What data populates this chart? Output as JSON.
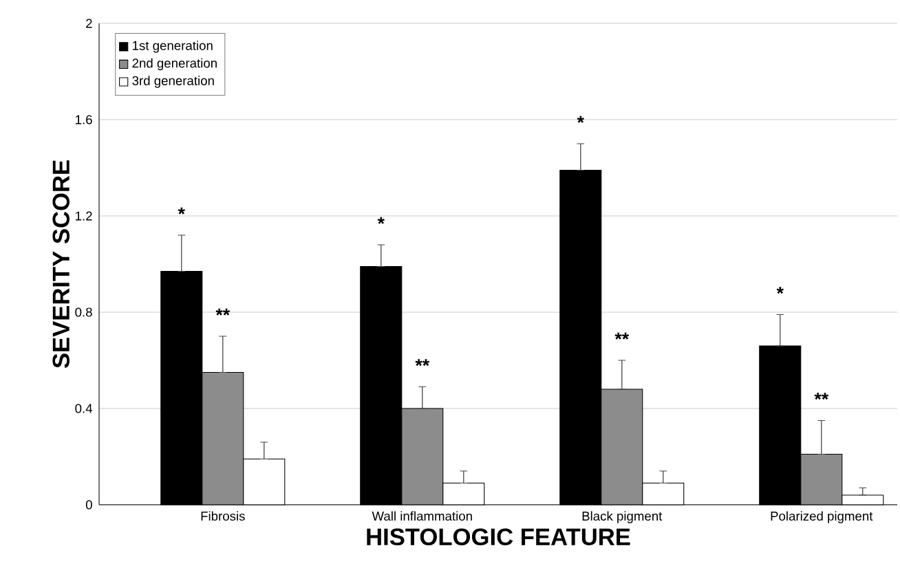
{
  "chart_data": {
    "type": "bar",
    "xlabel": "HISTOLOGIC FEATURE",
    "ylabel": "SEVERITY SCORE",
    "categories": [
      "Fibrosis",
      "Wall inflammation",
      "Black pigment",
      "Polarized pigment"
    ],
    "series": [
      {
        "name": "1st generation",
        "color": "#000000",
        "values": [
          0.97,
          0.99,
          1.39,
          0.66
        ],
        "value_labels": [
          "*",
          "*",
          "*",
          "*"
        ],
        "errors": [
          [
            0.97,
            1.12
          ],
          [
            0.99,
            1.08
          ],
          [
            1.39,
            1.5
          ],
          [
            0.66,
            0.79
          ]
        ]
      },
      {
        "name": "2nd generation",
        "color": "#8c8c8c",
        "values": [
          0.55,
          0.4,
          0.48,
          0.21
        ],
        "value_labels": [
          "**",
          "**",
          "**",
          "**"
        ],
        "errors": [
          [
            0.55,
            0.7
          ],
          [
            0.4,
            0.49
          ],
          [
            0.48,
            0.6
          ],
          [
            0.21,
            0.35
          ]
        ]
      },
      {
        "name": "3rd generation",
        "color": "#ffffff",
        "values": [
          0.19,
          0.09,
          0.09,
          0.04
        ],
        "errors": [
          [
            0.19,
            0.26
          ],
          [
            0.09,
            0.14
          ],
          [
            0.09,
            0.14
          ],
          [
            0.04,
            0.07
          ]
        ]
      }
    ],
    "ylim": [
      0,
      2
    ],
    "yticks": [
      0,
      0.4,
      0.8,
      1.2,
      1.6,
      2
    ],
    "grid": "y",
    "legend": "top left"
  }
}
